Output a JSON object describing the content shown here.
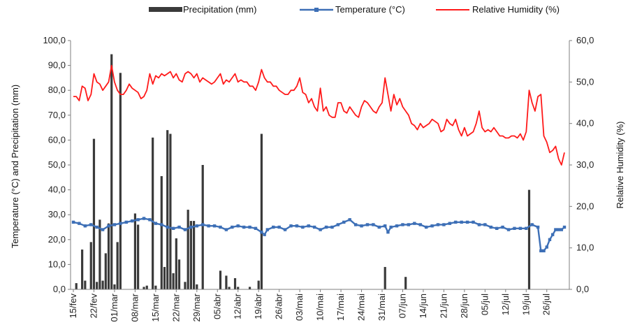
{
  "chart_data": {
    "type": "bar+line",
    "title": "",
    "legend": {
      "placement": "top",
      "items": [
        {
          "label": "Precipitation (mm)",
          "kind": "bar",
          "color": "#3a3a3a"
        },
        {
          "label": "Temperature (°C)",
          "kind": "line-marker",
          "color": "#3d6fb6"
        },
        {
          "label": "Relative Humidity (%)",
          "kind": "line",
          "color": "#ff1a1a"
        }
      ]
    },
    "y_left": {
      "label": "Temperature (°C) and  Precipitation (mm)",
      "range": [
        0,
        100
      ],
      "ticks": [
        "0,0",
        "10,0",
        "20,0",
        "30,0",
        "40,0",
        "50,0",
        "60,0",
        "70,0",
        "80,0",
        "90,0",
        "100,0"
      ]
    },
    "y_right": {
      "label": "Relative Humidity (%)",
      "range": [
        0,
        60
      ],
      "ticks": [
        "0,0",
        "10,0",
        "20,0",
        "30,0",
        "40,0",
        "50,0",
        "60,0"
      ]
    },
    "x": {
      "first_day": 0,
      "last_day": 167,
      "tick_days": [
        0,
        7,
        14,
        21,
        28,
        35,
        42,
        49,
        56,
        63,
        70,
        77,
        84,
        91,
        98,
        105,
        112,
        119,
        126,
        133,
        140,
        147,
        154,
        161
      ],
      "tick_labels": [
        "15/fev",
        "22/fev",
        "01/mar",
        "08/mar",
        "15/mar",
        "22/mar",
        "29/mar",
        "05/abr",
        "12/abr",
        "19/abr",
        "26/abr",
        "03/mai",
        "10/mai",
        "17/mai",
        "24/mai",
        "31/mai",
        "07/jun",
        "14/jun",
        "21/jun",
        "28/jun",
        "05/jul",
        "12/jul",
        "19/jul",
        "26/jul"
      ]
    },
    "series": [
      {
        "name": "Precipitation (mm)",
        "type": "bar",
        "axis": "left",
        "color": "#3a3a3a",
        "points": [
          [
            1,
            2.5
          ],
          [
            3,
            16
          ],
          [
            4,
            3.5
          ],
          [
            6,
            19
          ],
          [
            7,
            60.5
          ],
          [
            8,
            3
          ],
          [
            9,
            28
          ],
          [
            10,
            3.5
          ],
          [
            11,
            14.5
          ],
          [
            12,
            26.5
          ],
          [
            13,
            94.5
          ],
          [
            14,
            2
          ],
          [
            15,
            19
          ],
          [
            16,
            87
          ],
          [
            21,
            30.5
          ],
          [
            22,
            26
          ],
          [
            24,
            1
          ],
          [
            25,
            1.5
          ],
          [
            27,
            61
          ],
          [
            28,
            1.5
          ],
          [
            30,
            45.5
          ],
          [
            31,
            9
          ],
          [
            32,
            64
          ],
          [
            33,
            62.5
          ],
          [
            34,
            6.5
          ],
          [
            35,
            20.5
          ],
          [
            36,
            12
          ],
          [
            38,
            3
          ],
          [
            39,
            32
          ],
          [
            40,
            27.5
          ],
          [
            41,
            27.5
          ],
          [
            42,
            2
          ],
          [
            44,
            50
          ],
          [
            50,
            7.5
          ],
          [
            52,
            5.5
          ],
          [
            53,
            1
          ],
          [
            55,
            4.5
          ],
          [
            56,
            1
          ],
          [
            60,
            1
          ],
          [
            63,
            3.5
          ],
          [
            64,
            62.5
          ],
          [
            106,
            9
          ],
          [
            113,
            5
          ],
          [
            155,
            40
          ]
        ]
      },
      {
        "name": "Temperature (°C)",
        "type": "line",
        "axis": "left",
        "color": "#3d6fb6",
        "points": [
          [
            0,
            27
          ],
          [
            2,
            26.5
          ],
          [
            4,
            25.5
          ],
          [
            6,
            26
          ],
          [
            8,
            25
          ],
          [
            10,
            24
          ],
          [
            12,
            25.5
          ],
          [
            14,
            26
          ],
          [
            16,
            26.5
          ],
          [
            18,
            27
          ],
          [
            20,
            27.5
          ],
          [
            22,
            28
          ],
          [
            24,
            28.5
          ],
          [
            26,
            28
          ],
          [
            28,
            26.5
          ],
          [
            30,
            26
          ],
          [
            32,
            25
          ],
          [
            34,
            24.5
          ],
          [
            36,
            25
          ],
          [
            38,
            24
          ],
          [
            40,
            25
          ],
          [
            42,
            25.5
          ],
          [
            44,
            26
          ],
          [
            46,
            25.5
          ],
          [
            48,
            25.5
          ],
          [
            50,
            25
          ],
          [
            52,
            24
          ],
          [
            54,
            25
          ],
          [
            56,
            25.5
          ],
          [
            58,
            25
          ],
          [
            60,
            25
          ],
          [
            62,
            24.5
          ],
          [
            64,
            23
          ],
          [
            65,
            22
          ],
          [
            66,
            24
          ],
          [
            68,
            25
          ],
          [
            70,
            25
          ],
          [
            72,
            24
          ],
          [
            74,
            25.5
          ],
          [
            76,
            25.5
          ],
          [
            78,
            25
          ],
          [
            80,
            25.5
          ],
          [
            82,
            25
          ],
          [
            84,
            24
          ],
          [
            86,
            25
          ],
          [
            88,
            25
          ],
          [
            90,
            26
          ],
          [
            92,
            27
          ],
          [
            94,
            28
          ],
          [
            96,
            26
          ],
          [
            98,
            25.5
          ],
          [
            100,
            26
          ],
          [
            102,
            26
          ],
          [
            104,
            25
          ],
          [
            106,
            25.5
          ],
          [
            107,
            23
          ],
          [
            108,
            25
          ],
          [
            110,
            25.5
          ],
          [
            112,
            26
          ],
          [
            114,
            26
          ],
          [
            116,
            26.5
          ],
          [
            118,
            26
          ],
          [
            120,
            25
          ],
          [
            122,
            25.5
          ],
          [
            124,
            26
          ],
          [
            126,
            26
          ],
          [
            128,
            26.5
          ],
          [
            130,
            27
          ],
          [
            132,
            27
          ],
          [
            134,
            27
          ],
          [
            136,
            27
          ],
          [
            138,
            26
          ],
          [
            140,
            26
          ],
          [
            142,
            25
          ],
          [
            144,
            24.5
          ],
          [
            146,
            25
          ],
          [
            148,
            24
          ],
          [
            150,
            24.5
          ],
          [
            152,
            24.5
          ],
          [
            154,
            24.5
          ],
          [
            156,
            26
          ],
          [
            158,
            25
          ],
          [
            159,
            15.5
          ],
          [
            160,
            15.5
          ],
          [
            161,
            17
          ],
          [
            162,
            20
          ],
          [
            163,
            22
          ],
          [
            164,
            24
          ],
          [
            165,
            24
          ],
          [
            166,
            24
          ],
          [
            167,
            25
          ]
        ]
      },
      {
        "name": "Relative Humidity (%)",
        "type": "line",
        "axis": "right",
        "color": "#ff1a1a",
        "points": [
          [
            0,
            46.5
          ],
          [
            1,
            46.5
          ],
          [
            2,
            45.5
          ],
          [
            3,
            49
          ],
          [
            4,
            48.5
          ],
          [
            5,
            45.5
          ],
          [
            6,
            47
          ],
          [
            7,
            52
          ],
          [
            8,
            50
          ],
          [
            9,
            49.5
          ],
          [
            10,
            48
          ],
          [
            11,
            49
          ],
          [
            12,
            50
          ],
          [
            13,
            54
          ],
          [
            14,
            50
          ],
          [
            15,
            48
          ],
          [
            16,
            47
          ],
          [
            17,
            47
          ],
          [
            18,
            48
          ],
          [
            19,
            49.5
          ],
          [
            20,
            48.5
          ],
          [
            21,
            48
          ],
          [
            22,
            47.5
          ],
          [
            23,
            46
          ],
          [
            24,
            46.5
          ],
          [
            25,
            48
          ],
          [
            26,
            52
          ],
          [
            27,
            49.5
          ],
          [
            28,
            51.5
          ],
          [
            29,
            51
          ],
          [
            30,
            52
          ],
          [
            31,
            51.5
          ],
          [
            32,
            52
          ],
          [
            33,
            52.5
          ],
          [
            34,
            51
          ],
          [
            35,
            52
          ],
          [
            36,
            50.5
          ],
          [
            37,
            50
          ],
          [
            38,
            52
          ],
          [
            39,
            52.5
          ],
          [
            40,
            52
          ],
          [
            41,
            51
          ],
          [
            42,
            52
          ],
          [
            43,
            50
          ],
          [
            44,
            51
          ],
          [
            45,
            50.5
          ],
          [
            46,
            50
          ],
          [
            47,
            49.5
          ],
          [
            48,
            50
          ],
          [
            49,
            51
          ],
          [
            50,
            52
          ],
          [
            51,
            49.5
          ],
          [
            52,
            50.5
          ],
          [
            53,
            50
          ],
          [
            54,
            51
          ],
          [
            55,
            52
          ],
          [
            56,
            50
          ],
          [
            57,
            50.5
          ],
          [
            58,
            50
          ],
          [
            59,
            50
          ],
          [
            60,
            49
          ],
          [
            61,
            49
          ],
          [
            62,
            48
          ],
          [
            63,
            50
          ],
          [
            64,
            53
          ],
          [
            65,
            51
          ],
          [
            66,
            50
          ],
          [
            67,
            50
          ],
          [
            68,
            49
          ],
          [
            69,
            49
          ],
          [
            70,
            48
          ],
          [
            71,
            47.5
          ],
          [
            72,
            47
          ],
          [
            73,
            47
          ],
          [
            74,
            48
          ],
          [
            75,
            48
          ],
          [
            76,
            49
          ],
          [
            77,
            51
          ],
          [
            78,
            47.5
          ],
          [
            79,
            47
          ],
          [
            80,
            45
          ],
          [
            81,
            46
          ],
          [
            82,
            44
          ],
          [
            83,
            43
          ],
          [
            84,
            48.5
          ],
          [
            85,
            43
          ],
          [
            86,
            44
          ],
          [
            87,
            42
          ],
          [
            88,
            41.5
          ],
          [
            89,
            41.5
          ],
          [
            90,
            45
          ],
          [
            91,
            45
          ],
          [
            92,
            43
          ],
          [
            93,
            42.5
          ],
          [
            94,
            44
          ],
          [
            95,
            43
          ],
          [
            96,
            42
          ],
          [
            97,
            41.5
          ],
          [
            98,
            44
          ],
          [
            99,
            45.5
          ],
          [
            100,
            45
          ],
          [
            101,
            44
          ],
          [
            102,
            43
          ],
          [
            103,
            42.5
          ],
          [
            104,
            44
          ],
          [
            105,
            45
          ],
          [
            106,
            51
          ],
          [
            107,
            47
          ],
          [
            108,
            43
          ],
          [
            109,
            47
          ],
          [
            110,
            44.5
          ],
          [
            111,
            46
          ],
          [
            112,
            44
          ],
          [
            113,
            43
          ],
          [
            114,
            42
          ],
          [
            115,
            40
          ],
          [
            116,
            39.5
          ],
          [
            117,
            38.5
          ],
          [
            118,
            40
          ],
          [
            119,
            39
          ],
          [
            120,
            39.5
          ],
          [
            121,
            40
          ],
          [
            122,
            41
          ],
          [
            123,
            40.5
          ],
          [
            124,
            40
          ],
          [
            125,
            38
          ],
          [
            126,
            38.5
          ],
          [
            127,
            41
          ],
          [
            128,
            40
          ],
          [
            129,
            39.5
          ],
          [
            130,
            41
          ],
          [
            131,
            38.5
          ],
          [
            132,
            37
          ],
          [
            133,
            39
          ],
          [
            134,
            37
          ],
          [
            135,
            37.5
          ],
          [
            136,
            38
          ],
          [
            137,
            40
          ],
          [
            138,
            43
          ],
          [
            139,
            39
          ],
          [
            140,
            38
          ],
          [
            141,
            38.5
          ],
          [
            142,
            38
          ],
          [
            143,
            39
          ],
          [
            144,
            38
          ],
          [
            145,
            37
          ],
          [
            146,
            37
          ],
          [
            147,
            36.5
          ],
          [
            148,
            36.5
          ],
          [
            149,
            37
          ],
          [
            150,
            37
          ],
          [
            151,
            36.5
          ],
          [
            152,
            37.5
          ],
          [
            153,
            36
          ],
          [
            154,
            38
          ],
          [
            155,
            48
          ],
          [
            156,
            45
          ],
          [
            157,
            43
          ],
          [
            158,
            46.5
          ],
          [
            159,
            47
          ],
          [
            160,
            37
          ],
          [
            161,
            35.5
          ],
          [
            162,
            33
          ],
          [
            163,
            33.5
          ],
          [
            164,
            34.5
          ],
          [
            165,
            31.5
          ],
          [
            166,
            30
          ],
          [
            167,
            33
          ]
        ]
      }
    ]
  }
}
